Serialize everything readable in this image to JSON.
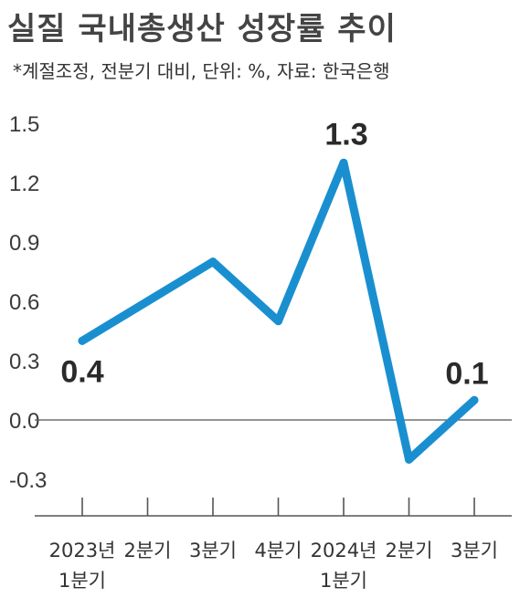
{
  "title": "실질 국내총생산 성장률 추이",
  "subtitle": "*계절조정, 전분기 대비, 단위: %, 자료: 한국은행",
  "colors": {
    "line": "#1a8fd0",
    "baseline": "#555555",
    "axis": "#555555"
  },
  "chart_data": {
    "type": "line",
    "title": "실질 국내총생산 성장률 추이",
    "xlabel": "",
    "ylabel": "",
    "ylim": [
      -0.3,
      1.5
    ],
    "yticks": [
      "1.5",
      "1.2",
      "0.9",
      "0.6",
      "0.3",
      "0.0",
      "-0.3"
    ],
    "categories": [
      [
        "2023년",
        "1분기"
      ],
      [
        "2분기"
      ],
      [
        "3분기"
      ],
      [
        "4분기"
      ],
      [
        "2024년",
        "1분기"
      ],
      [
        "2분기"
      ],
      [
        "3분기"
      ]
    ],
    "values": [
      0.4,
      0.6,
      0.8,
      0.5,
      1.3,
      -0.2,
      0.1
    ],
    "data_labels": [
      {
        "index": 0,
        "text": "0.4"
      },
      {
        "index": 4,
        "text": "1.3"
      },
      {
        "index": 6,
        "text": "0.1"
      }
    ],
    "grid": false,
    "zero_line": true
  }
}
